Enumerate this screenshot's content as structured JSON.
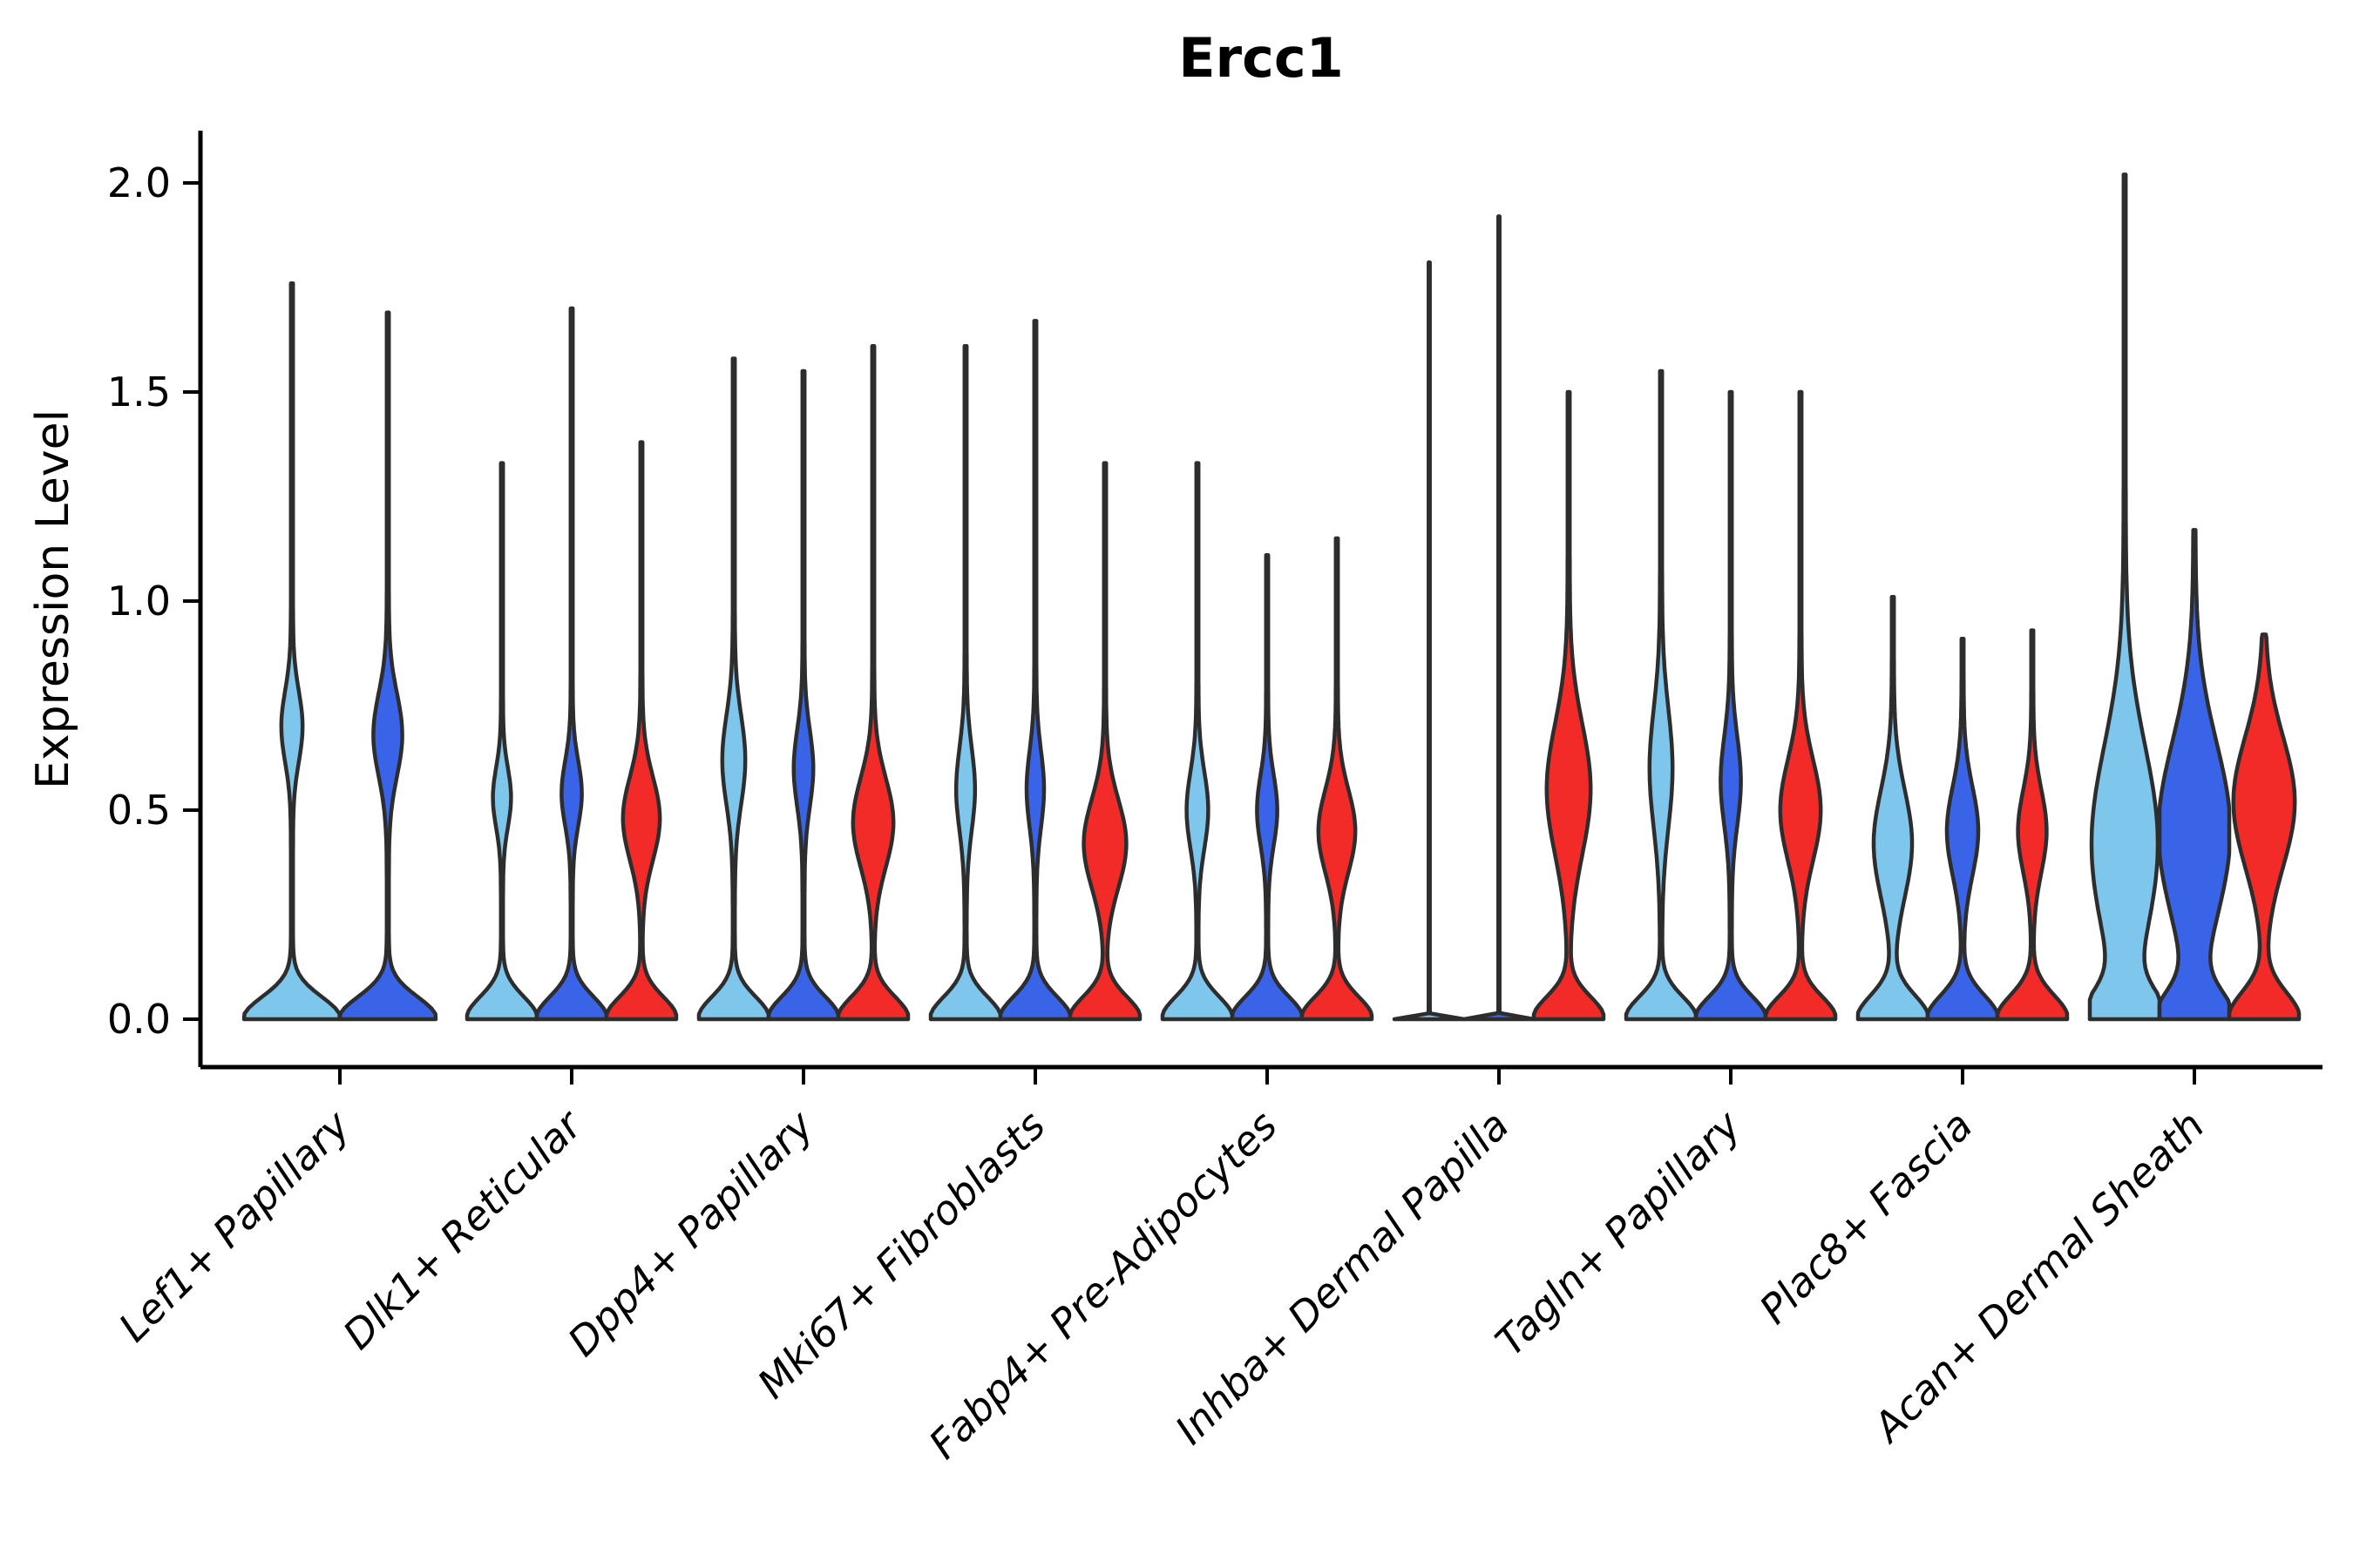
{
  "title": "Ercc1",
  "axis": {
    "ylabel": "Expression Level",
    "ytick_labels": [
      "0.0",
      "0.5",
      "1.0",
      "1.5",
      "2.0"
    ]
  },
  "palette": {
    "lightblue": "#7ec6ec",
    "blue": "#3a64e8",
    "red": "#f22b28",
    "outline": "#2d2d2d",
    "axis_color": "#000000"
  },
  "chart_data": {
    "type": "violin",
    "title": "Ercc1",
    "ylabel": "Expression Level",
    "ylim": [
      -0.115,
      2.24
    ],
    "yticks": [
      0.0,
      0.5,
      1.0,
      1.5,
      2.0
    ],
    "grid": false,
    "legend": "none",
    "series_order": [
      "lightblue",
      "blue",
      "red"
    ],
    "categories": [
      "Lef1+ Papillary",
      "Dlk1+ Reticular",
      "Dpp4+ Papillary",
      "Mki67+ Fibroblasts",
      "Fabp4+ Pre-Adipocytes",
      "Inhba+ Dermal Papilla",
      "Tagln+ Papillary",
      "Plac8+ Fascia",
      "Acan+ Dermal Sheath"
    ],
    "groups": [
      {
        "label": "Lef1+ Papillary",
        "violins": [
          {
            "color": "lightblue",
            "max": 1.76,
            "bulge_center": 0.7,
            "bulge_sigma": 0.12,
            "bulge_amp": 0.2,
            "base_sigma": 0.075,
            "stem": 0.022
          },
          {
            "color": "blue",
            "max": 1.69,
            "bulge_center": 0.68,
            "bulge_sigma": 0.14,
            "bulge_amp": 0.28,
            "base_sigma": 0.075,
            "stem": 0.022
          }
        ]
      },
      {
        "label": "Dlk1+ Reticular",
        "violins": [
          {
            "color": "lightblue",
            "max": 1.33,
            "bulge_center": 0.53,
            "bulge_sigma": 0.1,
            "bulge_amp": 0.23,
            "base_sigma": 0.075,
            "stem": 0.03
          },
          {
            "color": "blue",
            "max": 1.7,
            "bulge_center": 0.54,
            "bulge_sigma": 0.11,
            "bulge_amp": 0.26,
            "base_sigma": 0.075,
            "stem": 0.03
          },
          {
            "color": "red",
            "max": 1.38,
            "bulge_center": 0.48,
            "bulge_sigma": 0.14,
            "bulge_amp": 0.5,
            "base_sigma": 0.075,
            "stem": 0.03
          }
        ]
      },
      {
        "label": "Dpp4+ Papillary",
        "violins": [
          {
            "color": "lightblue",
            "max": 1.58,
            "bulge_center": 0.62,
            "bulge_sigma": 0.15,
            "bulge_amp": 0.3,
            "base_sigma": 0.075,
            "stem": 0.03
          },
          {
            "color": "blue",
            "max": 1.55,
            "bulge_center": 0.6,
            "bulge_sigma": 0.13,
            "bulge_amp": 0.25,
            "base_sigma": 0.075,
            "stem": 0.03
          },
          {
            "color": "red",
            "max": 1.61,
            "bulge_center": 0.47,
            "bulge_sigma": 0.15,
            "bulge_amp": 0.55,
            "base_sigma": 0.075,
            "stem": 0.03
          }
        ]
      },
      {
        "label": "Mki67+ Fibroblasts",
        "violins": [
          {
            "color": "lightblue",
            "max": 1.61,
            "bulge_center": 0.55,
            "bulge_sigma": 0.14,
            "bulge_amp": 0.24,
            "base_sigma": 0.075,
            "stem": 0.03
          },
          {
            "color": "blue",
            "max": 1.67,
            "bulge_center": 0.55,
            "bulge_sigma": 0.13,
            "bulge_amp": 0.22,
            "base_sigma": 0.075,
            "stem": 0.03
          },
          {
            "color": "red",
            "max": 1.33,
            "bulge_center": 0.42,
            "bulge_sigma": 0.15,
            "bulge_amp": 0.58,
            "base_sigma": 0.075,
            "stem": 0.03
          }
        ]
      },
      {
        "label": "Fabp4+ Pre-Adipocytes",
        "violins": [
          {
            "color": "lightblue",
            "max": 1.33,
            "bulge_center": 0.5,
            "bulge_sigma": 0.13,
            "bulge_amp": 0.28,
            "base_sigma": 0.075,
            "stem": 0.03
          },
          {
            "color": "blue",
            "max": 1.11,
            "bulge_center": 0.5,
            "bulge_sigma": 0.12,
            "bulge_amp": 0.26,
            "base_sigma": 0.075,
            "stem": 0.03
          },
          {
            "color": "red",
            "max": 1.15,
            "bulge_center": 0.45,
            "bulge_sigma": 0.14,
            "bulge_amp": 0.5,
            "base_sigma": 0.075,
            "stem": 0.03
          }
        ]
      },
      {
        "label": "Inhba+ Dermal Papilla",
        "violins": [
          {
            "color": "lightblue",
            "max": 1.81,
            "bulge_center": 0.5,
            "bulge_sigma": 0.1,
            "bulge_amp": 0.0,
            "base_sigma": 0.006,
            "stem": 0.018
          },
          {
            "color": "blue",
            "max": 1.92,
            "bulge_center": 0.5,
            "bulge_sigma": 0.1,
            "bulge_amp": 0.0,
            "base_sigma": 0.006,
            "stem": 0.018
          },
          {
            "color": "red",
            "max": 1.5,
            "bulge_center": 0.55,
            "bulge_sigma": 0.22,
            "bulge_amp": 0.6,
            "base_sigma": 0.075,
            "stem": 0.03
          }
        ]
      },
      {
        "label": "Tagln+ Papillary",
        "violins": [
          {
            "color": "lightblue",
            "max": 1.55,
            "bulge_center": 0.6,
            "bulge_sigma": 0.2,
            "bulge_amp": 0.3,
            "base_sigma": 0.075,
            "stem": 0.03
          },
          {
            "color": "blue",
            "max": 1.5,
            "bulge_center": 0.57,
            "bulge_sigma": 0.15,
            "bulge_amp": 0.26,
            "base_sigma": 0.075,
            "stem": 0.03
          },
          {
            "color": "red",
            "max": 1.5,
            "bulge_center": 0.5,
            "bulge_sigma": 0.17,
            "bulge_amp": 0.55,
            "base_sigma": 0.075,
            "stem": 0.03
          }
        ]
      },
      {
        "label": "Plac8+ Fascia",
        "violins": [
          {
            "color": "lightblue",
            "max": 1.01,
            "bulge_center": 0.42,
            "bulge_sigma": 0.18,
            "bulge_amp": 0.52,
            "base_sigma": 0.08,
            "stem": 0.03
          },
          {
            "color": "blue",
            "max": 0.91,
            "bulge_center": 0.45,
            "bulge_sigma": 0.15,
            "bulge_amp": 0.42,
            "base_sigma": 0.08,
            "stem": 0.03
          },
          {
            "color": "red",
            "max": 0.93,
            "bulge_center": 0.45,
            "bulge_sigma": 0.14,
            "bulge_amp": 0.38,
            "base_sigma": 0.08,
            "stem": 0.03
          }
        ]
      },
      {
        "label": "Acan+ Dermal Sheath",
        "violins": [
          {
            "color": "lightblue",
            "max": 2.02,
            "bulge_center": 0.42,
            "bulge_sigma": 0.33,
            "bulge_amp": 0.92,
            "base_sigma": 0.09,
            "stem": 0.03
          },
          {
            "color": "blue",
            "max": 1.17,
            "bulge_center": 0.45,
            "bulge_sigma": 0.3,
            "bulge_amp": 1.0,
            "base_sigma": 0.09,
            "stem": 0.03
          },
          {
            "color": "red",
            "max": 0.92,
            "bulge_center": 0.52,
            "bulge_sigma": 0.22,
            "bulge_amp": 0.85,
            "base_sigma": 0.09,
            "stem": 0.03
          }
        ]
      }
    ]
  }
}
